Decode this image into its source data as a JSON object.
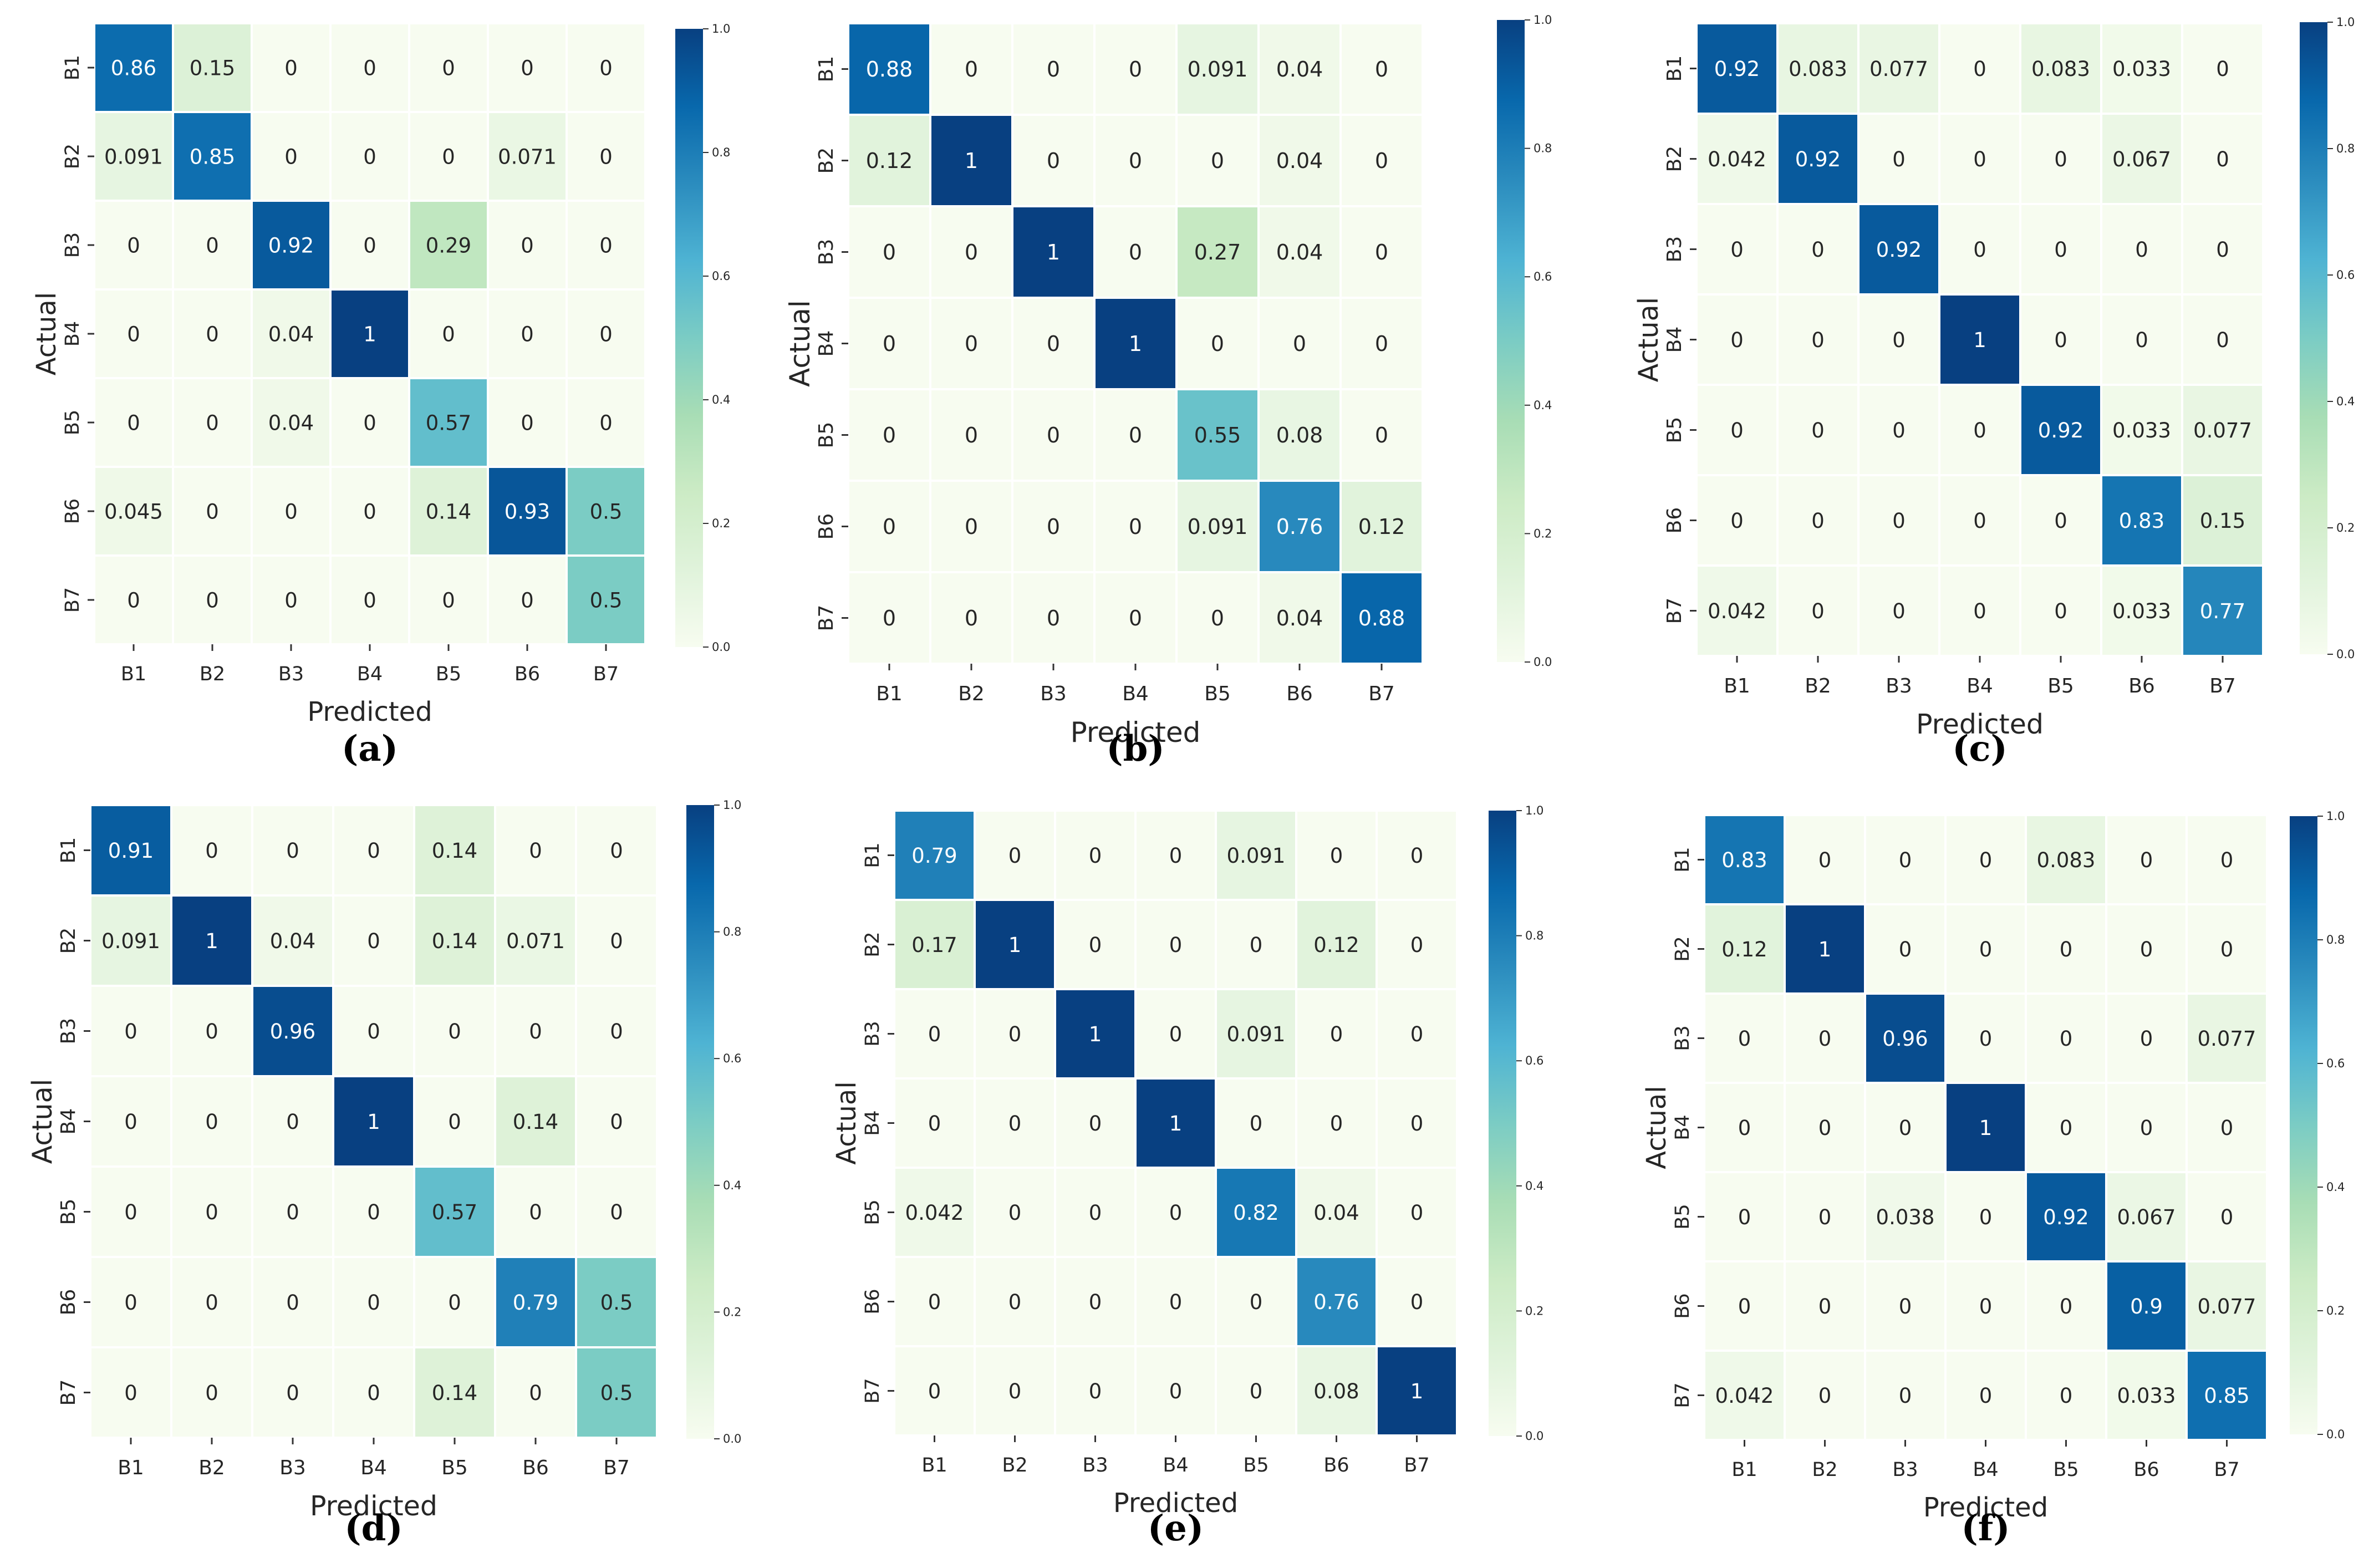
{
  "figure": {
    "xlabel": "Predicted",
    "ylabel": "Actual",
    "colorbar_ticks": [
      "0.0",
      "0.2",
      "0.4",
      "0.6",
      "0.8",
      "1.0"
    ],
    "cmap": [
      "#f7fcf0",
      "#e0f3db",
      "#ccebc5",
      "#a8ddb5",
      "#7bccc4",
      "#4eb3d3",
      "#2b8cbe",
      "#0868ac",
      "#084081"
    ]
  },
  "chart_data": [
    {
      "type": "heatmap",
      "panel": "(a)",
      "x_labels": [
        "B1",
        "B2",
        "B3",
        "B4",
        "B5",
        "B6",
        "B7"
      ],
      "y_labels": [
        "B1",
        "B2",
        "B3",
        "B4",
        "B5",
        "B6",
        "B7"
      ],
      "xlabel": "Predicted",
      "ylabel": "Actual",
      "vmin": 0,
      "vmax": 1,
      "matrix": [
        [
          "0.86",
          "0.15",
          "0",
          "0",
          "0",
          "0",
          "0"
        ],
        [
          "0.091",
          "0.85",
          "0",
          "0",
          "0",
          "0.071",
          "0"
        ],
        [
          "0",
          "0",
          "0.92",
          "0",
          "0.29",
          "0",
          "0"
        ],
        [
          "0",
          "0",
          "0.04",
          "1",
          "0",
          "0",
          "0"
        ],
        [
          "0",
          "0",
          "0.04",
          "0",
          "0.57",
          "0",
          "0"
        ],
        [
          "0.045",
          "0",
          "0",
          "0",
          "0.14",
          "0.93",
          "0.5"
        ],
        [
          "0",
          "0",
          "0",
          "0",
          "0",
          "0",
          "0.5"
        ]
      ]
    },
    {
      "type": "heatmap",
      "panel": "(b)",
      "x_labels": [
        "B1",
        "B2",
        "B3",
        "B4",
        "B5",
        "B6",
        "B7"
      ],
      "y_labels": [
        "B1",
        "B2",
        "B3",
        "B4",
        "B5",
        "B6",
        "B7"
      ],
      "xlabel": "Predicted",
      "ylabel": "Actual",
      "vmin": 0,
      "vmax": 1,
      "matrix": [
        [
          "0.88",
          "0",
          "0",
          "0",
          "0.091",
          "0.04",
          "0"
        ],
        [
          "0.12",
          "1",
          "0",
          "0",
          "0",
          "0.04",
          "0"
        ],
        [
          "0",
          "0",
          "1",
          "0",
          "0.27",
          "0.04",
          "0"
        ],
        [
          "0",
          "0",
          "0",
          "1",
          "0",
          "0",
          "0"
        ],
        [
          "0",
          "0",
          "0",
          "0",
          "0.55",
          "0.08",
          "0"
        ],
        [
          "0",
          "0",
          "0",
          "0",
          "0.091",
          "0.76",
          "0.12"
        ],
        [
          "0",
          "0",
          "0",
          "0",
          "0",
          "0.04",
          "0.88"
        ]
      ]
    },
    {
      "type": "heatmap",
      "panel": "(c)",
      "x_labels": [
        "B1",
        "B2",
        "B3",
        "B4",
        "B5",
        "B6",
        "B7"
      ],
      "y_labels": [
        "B1",
        "B2",
        "B3",
        "B4",
        "B5",
        "B6",
        "B7"
      ],
      "xlabel": "Predicted",
      "ylabel": "Actual",
      "vmin": 0,
      "vmax": 1,
      "matrix": [
        [
          "0.92",
          "0.083",
          "0.077",
          "0",
          "0.083",
          "0.033",
          "0"
        ],
        [
          "0.042",
          "0.92",
          "0",
          "0",
          "0",
          "0.067",
          "0"
        ],
        [
          "0",
          "0",
          "0.92",
          "0",
          "0",
          "0",
          "0"
        ],
        [
          "0",
          "0",
          "0",
          "1",
          "0",
          "0",
          "0"
        ],
        [
          "0",
          "0",
          "0",
          "0",
          "0.92",
          "0.033",
          "0.077"
        ],
        [
          "0",
          "0",
          "0",
          "0",
          "0",
          "0.83",
          "0.15"
        ],
        [
          "0.042",
          "0",
          "0",
          "0",
          "0",
          "0.033",
          "0.77"
        ]
      ]
    },
    {
      "type": "heatmap",
      "panel": "(d)",
      "x_labels": [
        "B1",
        "B2",
        "B3",
        "B4",
        "B5",
        "B6",
        "B7"
      ],
      "y_labels": [
        "B1",
        "B2",
        "B3",
        "B4",
        "B5",
        "B6",
        "B7"
      ],
      "xlabel": "Predicted",
      "ylabel": "Actual",
      "vmin": 0,
      "vmax": 1,
      "matrix": [
        [
          "0.91",
          "0",
          "0",
          "0",
          "0.14",
          "0",
          "0"
        ],
        [
          "0.091",
          "1",
          "0.04",
          "0",
          "0.14",
          "0.071",
          "0"
        ],
        [
          "0",
          "0",
          "0.96",
          "0",
          "0",
          "0",
          "0"
        ],
        [
          "0",
          "0",
          "0",
          "1",
          "0",
          "0.14",
          "0"
        ],
        [
          "0",
          "0",
          "0",
          "0",
          "0.57",
          "0",
          "0"
        ],
        [
          "0",
          "0",
          "0",
          "0",
          "0",
          "0.79",
          "0.5"
        ],
        [
          "0",
          "0",
          "0",
          "0",
          "0.14",
          "0",
          "0.5"
        ]
      ]
    },
    {
      "type": "heatmap",
      "panel": "(e)",
      "x_labels": [
        "B1",
        "B2",
        "B3",
        "B4",
        "B5",
        "B6",
        "B7"
      ],
      "y_labels": [
        "B1",
        "B2",
        "B3",
        "B4",
        "B5",
        "B6",
        "B7"
      ],
      "xlabel": "Predicted",
      "ylabel": "Actual",
      "vmin": 0,
      "vmax": 1,
      "matrix": [
        [
          "0.79",
          "0",
          "0",
          "0",
          "0.091",
          "0",
          "0"
        ],
        [
          "0.17",
          "1",
          "0",
          "0",
          "0",
          "0.12",
          "0"
        ],
        [
          "0",
          "0",
          "1",
          "0",
          "0.091",
          "0",
          "0"
        ],
        [
          "0",
          "0",
          "0",
          "1",
          "0",
          "0",
          "0"
        ],
        [
          "0.042",
          "0",
          "0",
          "0",
          "0.82",
          "0.04",
          "0"
        ],
        [
          "0",
          "0",
          "0",
          "0",
          "0",
          "0.76",
          "0"
        ],
        [
          "0",
          "0",
          "0",
          "0",
          "0",
          "0.08",
          "1"
        ]
      ]
    },
    {
      "type": "heatmap",
      "panel": "(f)",
      "x_labels": [
        "B1",
        "B2",
        "B3",
        "B4",
        "B5",
        "B6",
        "B7"
      ],
      "y_labels": [
        "B1",
        "B2",
        "B3",
        "B4",
        "B5",
        "B6",
        "B7"
      ],
      "xlabel": "Predicted",
      "ylabel": "Actual",
      "vmin": 0,
      "vmax": 1,
      "matrix": [
        [
          "0.83",
          "0",
          "0",
          "0",
          "0.083",
          "0",
          "0"
        ],
        [
          "0.12",
          "1",
          "0",
          "0",
          "0",
          "0",
          "0"
        ],
        [
          "0",
          "0",
          "0.96",
          "0",
          "0",
          "0",
          "0.077"
        ],
        [
          "0",
          "0",
          "0",
          "1",
          "0",
          "0",
          "0"
        ],
        [
          "0",
          "0",
          "0.038",
          "0",
          "0.92",
          "0.067",
          "0"
        ],
        [
          "0",
          "0",
          "0",
          "0",
          "0",
          "0.9",
          "0.077"
        ],
        [
          "0.042",
          "0",
          "0",
          "0",
          "0",
          "0.033",
          "0.85"
        ]
      ]
    }
  ]
}
